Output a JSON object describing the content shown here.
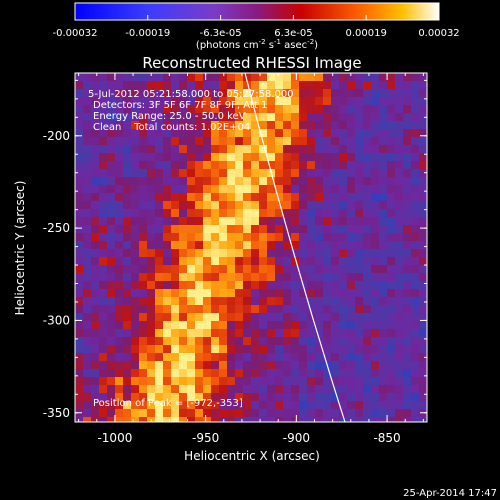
{
  "colorbar": {
    "tick_labels": [
      "-0.00032",
      "-0.00019",
      "-6.3e-05",
      "6.3e-05",
      "0.00019",
      "0.00032"
    ],
    "unit_prefix": "(photons cm",
    "unit_exp1": "-2",
    "unit_mid": " s",
    "unit_exp2": "-1",
    "unit_mid2": " asec",
    "unit_exp3": "-2",
    "unit_suffix": ")"
  },
  "plot": {
    "title": "Reconstructed RHESSI Image",
    "xlabel": "Heliocentric X (arcsec)",
    "ylabel": "Heliocentric Y (arcsec)",
    "x_ticks": [
      "-1000",
      "-950",
      "-900",
      "-850"
    ],
    "y_ticks": [
      "-200",
      "-250",
      "-300",
      "-350"
    ],
    "xlim": [
      -1022,
      -828
    ],
    "ylim": [
      -355,
      -166
    ]
  },
  "annotations": {
    "time_range": "5-Jul-2012 05:21:58.000 to 05:27:58.000",
    "detectors": "Detectors: 3F 5F 6F 7F 8F 9F, Att 1",
    "energy": "Energy Range: 25.0 - 50.0 keV",
    "method": "Clean    Total counts: 1.02E+04",
    "peak": "Position of Peak = [-972,-353]"
  },
  "footer": {
    "timestamp": "25-Apr-2014 17:47"
  },
  "colors": {
    "background": "#000000",
    "foreground": "#ffffff",
    "map_low": "#2a2a80",
    "map_mid": "#7a1fa0",
    "map_high": "#ffe060"
  }
}
